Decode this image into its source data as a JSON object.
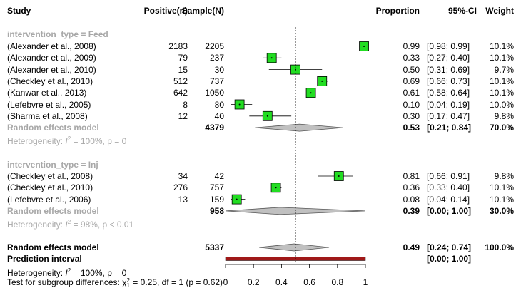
{
  "header": {
    "study": "Study",
    "positive": "Positive(n)",
    "sample": "Sample(N)",
    "proportion": "Proportion",
    "ci": "95%-CI",
    "weight": "Weight"
  },
  "colors": {
    "box": "#22dd22",
    "diamond": "#c0c0c0",
    "prediction": "#a01818",
    "group_text": "#a8a8a8"
  },
  "chart_data": {
    "type": "forest",
    "xlim": [
      0,
      1
    ],
    "xticks": [
      "0",
      "0.2",
      "0.4",
      "0.6",
      "0.8",
      "1"
    ],
    "reference_line": 0.5,
    "groups": [
      {
        "label": "intervention_type = Feed",
        "studies": [
          {
            "name": "(Alexander et al., 2008)",
            "positive": "2183",
            "sample": "2205",
            "prop": 0.99,
            "lo": 0.98,
            "hi": 0.99,
            "prop_text": "0.99",
            "ci_text": "[0.98; 0.99]",
            "weight_text": "10.1%"
          },
          {
            "name": "(Alexander et al., 2009)",
            "positive": "79",
            "sample": "237",
            "prop": 0.33,
            "lo": 0.27,
            "hi": 0.4,
            "prop_text": "0.33",
            "ci_text": "[0.27; 0.40]",
            "weight_text": "10.1%"
          },
          {
            "name": "(Alexander et al., 2010)",
            "positive": "15",
            "sample": "30",
            "prop": 0.5,
            "lo": 0.31,
            "hi": 0.69,
            "prop_text": "0.50",
            "ci_text": "[0.31; 0.69]",
            "weight_text": "9.7%"
          },
          {
            "name": "(Checkley et al., 2010)",
            "positive": "512",
            "sample": "737",
            "prop": 0.69,
            "lo": 0.66,
            "hi": 0.73,
            "prop_text": "0.69",
            "ci_text": "[0.66; 0.73]",
            "weight_text": "10.1%"
          },
          {
            "name": "(Kanwar et al., 2013)",
            "positive": "642",
            "sample": "1050",
            "prop": 0.61,
            "lo": 0.58,
            "hi": 0.64,
            "prop_text": "0.61",
            "ci_text": "[0.58; 0.64]",
            "weight_text": "10.1%"
          },
          {
            "name": "(Lefebvre et al., 2005)",
            "positive": "8",
            "sample": "80",
            "prop": 0.1,
            "lo": 0.04,
            "hi": 0.19,
            "prop_text": "0.10",
            "ci_text": "[0.04; 0.19]",
            "weight_text": "10.0%"
          },
          {
            "name": "(Sharma et al., 2008)",
            "positive": "12",
            "sample": "40",
            "prop": 0.3,
            "lo": 0.17,
            "hi": 0.47,
            "prop_text": "0.30",
            "ci_text": "[0.17; 0.47]",
            "weight_text": "9.8%"
          }
        ],
        "pooled": {
          "label": "Random effects model",
          "sample": "4379",
          "prop": 0.53,
          "lo": 0.21,
          "hi": 0.84,
          "prop_text": "0.53",
          "ci_text": "[0.21; 0.84]",
          "weight_text": "70.0%"
        },
        "heterogeneity": {
          "prefix": "Heterogeneity: ",
          "i2": "I",
          "i2_exp": "2",
          "rest": " = 100%, p = 0"
        }
      },
      {
        "label": "intervention_type = Inj",
        "studies": [
          {
            "name": "(Checkley et al., 2008)",
            "positive": "34",
            "sample": "42",
            "prop": 0.81,
            "lo": 0.66,
            "hi": 0.91,
            "prop_text": "0.81",
            "ci_text": "[0.66; 0.91]",
            "weight_text": "9.8%"
          },
          {
            "name": "(Checkley et al., 2010)",
            "positive": "276",
            "sample": "757",
            "prop": 0.36,
            "lo": 0.33,
            "hi": 0.4,
            "prop_text": "0.36",
            "ci_text": "[0.33; 0.40]",
            "weight_text": "10.1%"
          },
          {
            "name": "(Lefebvre et al., 2006)",
            "positive": "13",
            "sample": "159",
            "prop": 0.08,
            "lo": 0.04,
            "hi": 0.14,
            "prop_text": "0.08",
            "ci_text": "[0.04; 0.14]",
            "weight_text": "10.1%"
          }
        ],
        "pooled": {
          "label": "Random effects model",
          "sample": "958",
          "prop": 0.39,
          "lo": 0.0,
          "hi": 1.0,
          "prop_text": "0.39",
          "ci_text": "[0.00; 1.00]",
          "weight_text": "30.0%"
        },
        "heterogeneity": {
          "prefix": "Heterogeneity: ",
          "i2": "I",
          "i2_exp": "2",
          "rest": " = 98%, p < 0.01"
        }
      }
    ],
    "overall": {
      "label": "Random effects model",
      "sample": "5337",
      "prop": 0.49,
      "lo": 0.24,
      "hi": 0.74,
      "prop_text": "0.49",
      "ci_text": "[0.24; 0.74]",
      "weight_text": "100.0%"
    },
    "prediction": {
      "label": "Prediction interval",
      "lo": 0.0,
      "hi": 1.0,
      "ci_text": "[0.00; 1.00]"
    },
    "overall_heterogeneity": {
      "prefix": "Heterogeneity: ",
      "i2": "I",
      "i2_exp": "2",
      "rest": " = 100%, p = 0"
    },
    "subgroup_test": {
      "prefix": "Test for subgroup differences: ",
      "chi": "χ",
      "chi_exp": "2",
      "chi_sub": "1",
      "rest": " = 0.25, df = 1 (p = 0.62)"
    }
  }
}
